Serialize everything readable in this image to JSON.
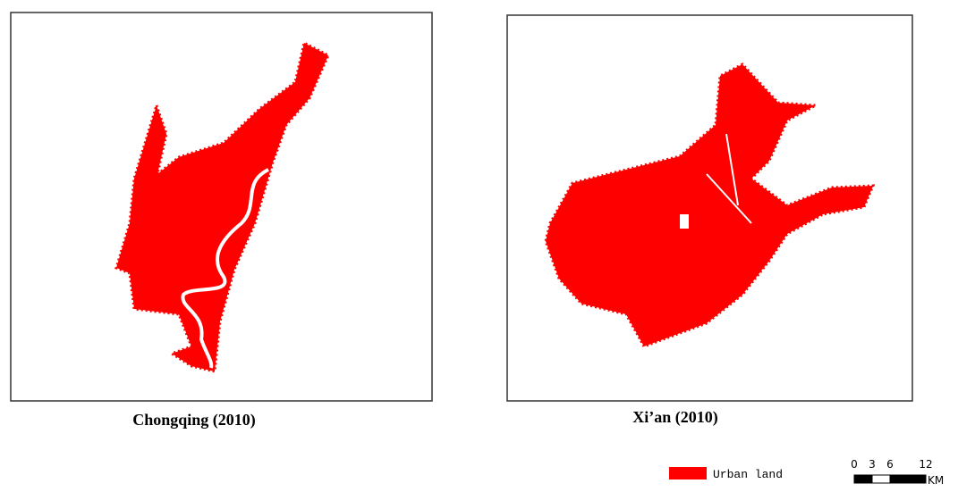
{
  "panels": [
    {
      "caption": "Chongqing (2010)"
    },
    {
      "caption": "Xi’an (2010)"
    }
  ],
  "legend": {
    "label": "Urban land",
    "color": "#ff0000"
  },
  "scale_bar": {
    "ticks": [
      0,
      3,
      6,
      12
    ],
    "unit": "KM"
  }
}
